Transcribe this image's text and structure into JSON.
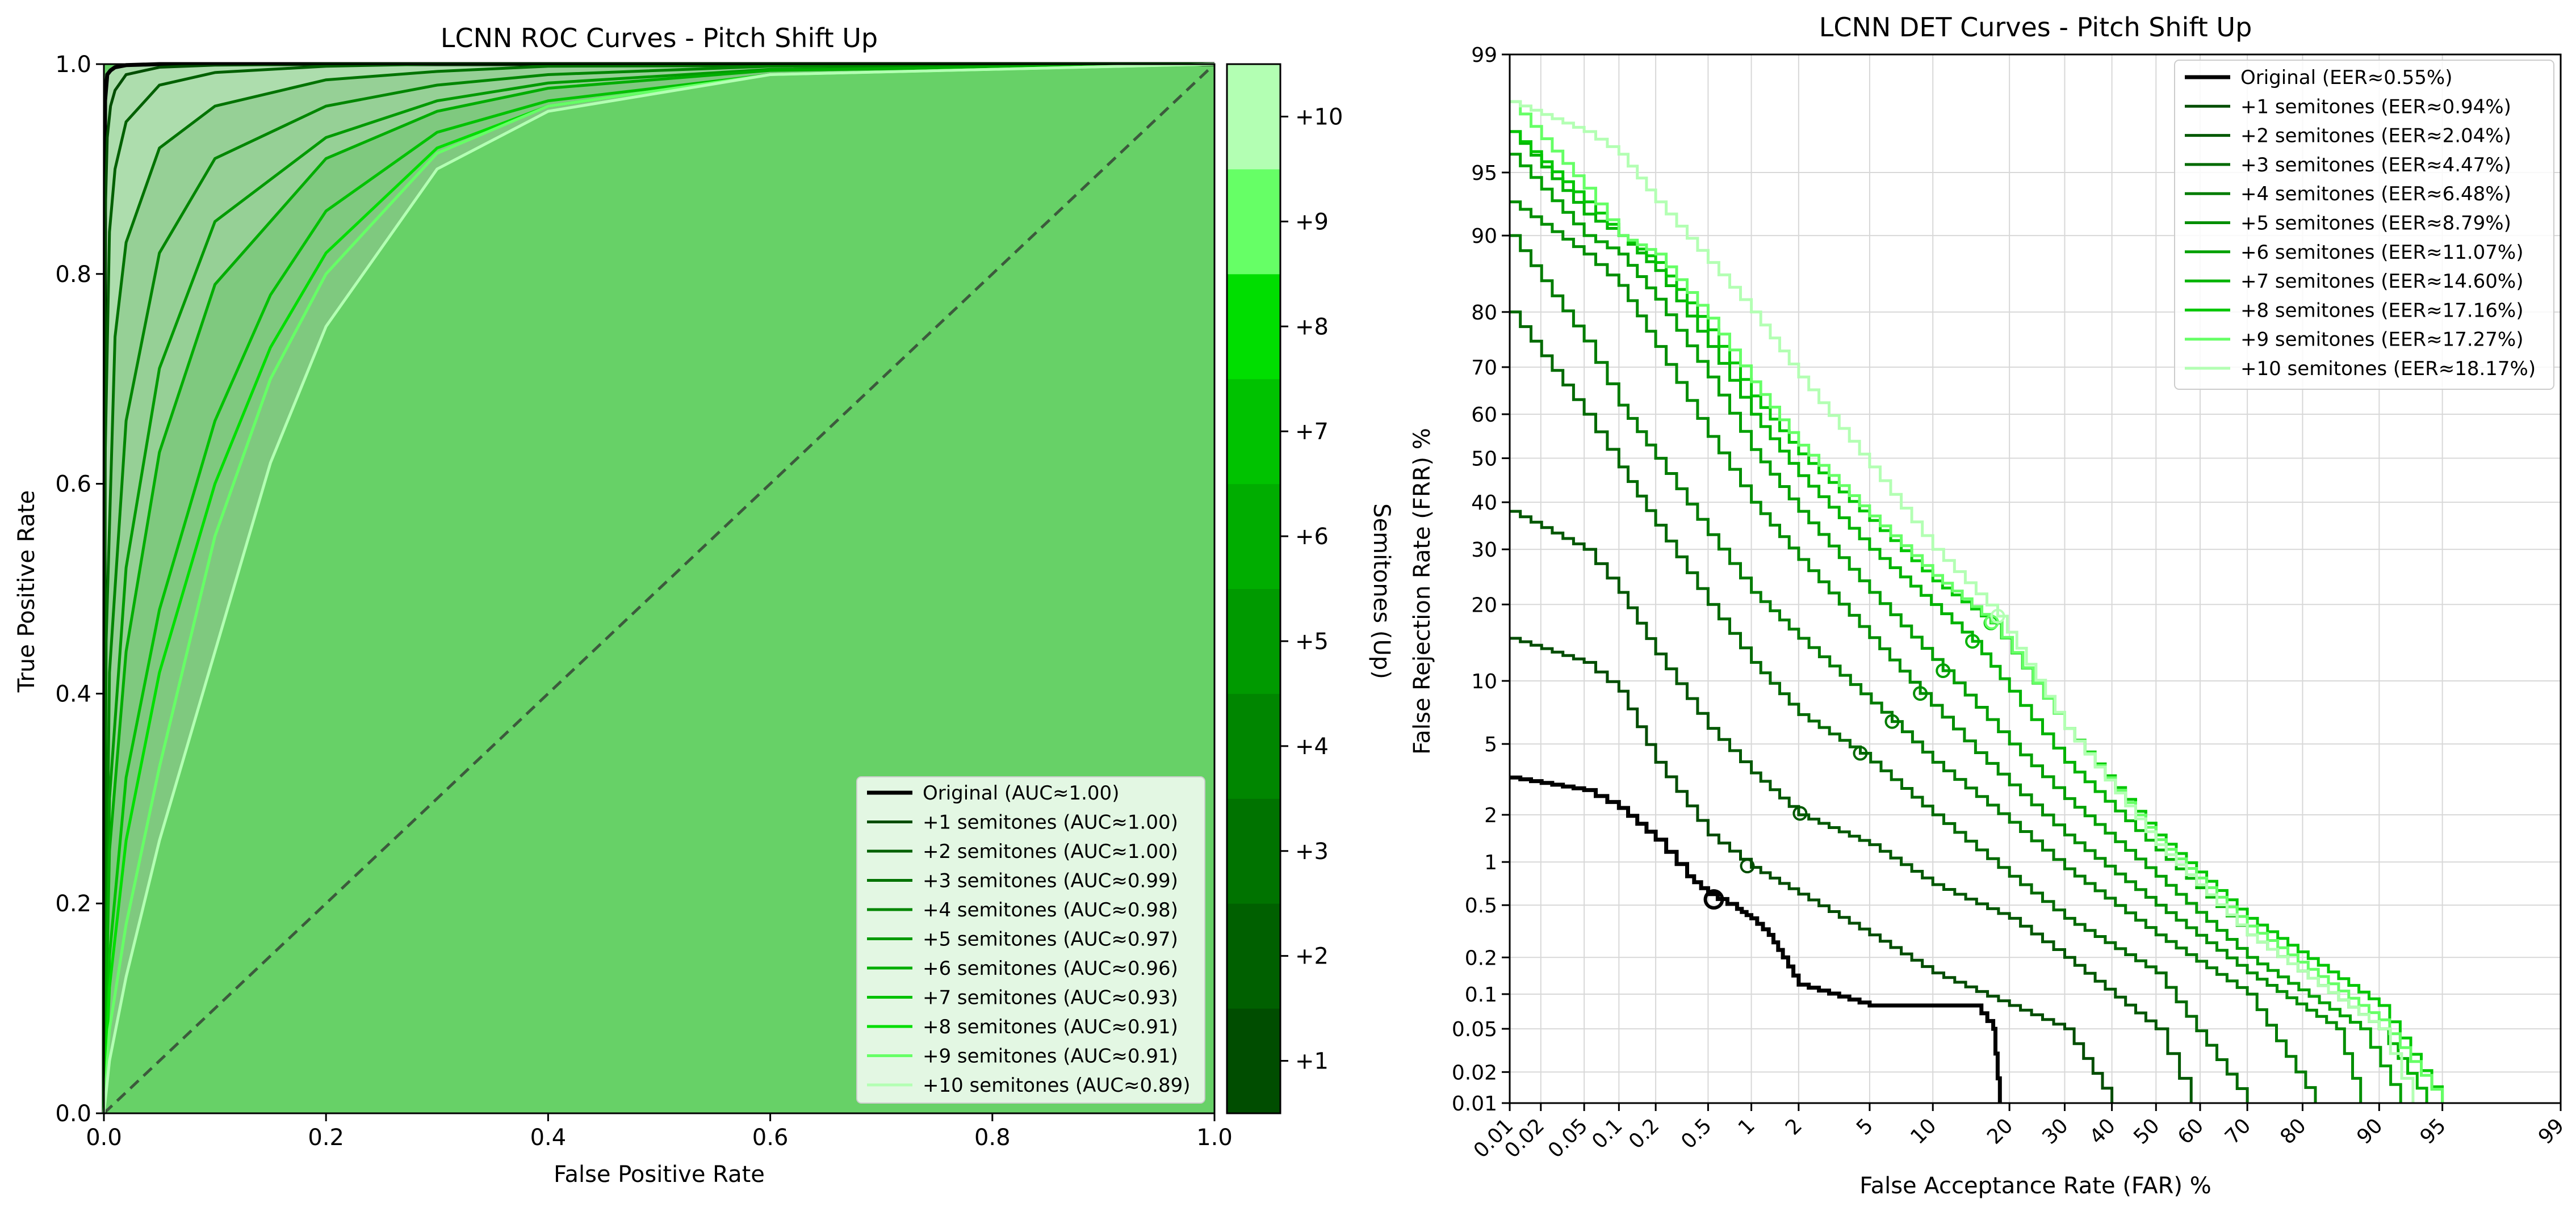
{
  "chart_data": [
    {
      "type": "line",
      "title": "LCNN ROC Curves - Pitch Shift Up",
      "xlabel": "False Positive Rate",
      "ylabel": "True Positive Rate",
      "xlim": [
        0,
        1
      ],
      "ylim": [
        0,
        1
      ],
      "xticks": [
        "0.0",
        "0.2",
        "0.4",
        "0.6",
        "0.8",
        "1.0"
      ],
      "yticks": [
        "0.0",
        "0.2",
        "0.4",
        "0.6",
        "0.8",
        "1.0"
      ],
      "diagonal": "dashed chance line from (0,0) to (1,1)",
      "legend_position": "lower right",
      "colorbar": {
        "label": "Semitones (Up)",
        "ticks": [
          "+1",
          "+2",
          "+3",
          "+4",
          "+5",
          "+6",
          "+7",
          "+8",
          "+9",
          "+10"
        ]
      },
      "series": [
        {
          "name": "Original (AUC≈1.00)",
          "color": "#000000",
          "x": [
            0,
            0.001,
            0.003,
            0.006,
            0.01,
            0.02,
            0.05,
            0.1,
            1
          ],
          "y": [
            0,
            0.965,
            0.99,
            0.994,
            0.997,
            0.999,
            1.0,
            1.0,
            1.0
          ]
        },
        {
          "name": "+1 semitones (AUC≈1.00)",
          "color": "#004d00",
          "x": [
            0,
            0.001,
            0.003,
            0.006,
            0.01,
            0.02,
            0.05,
            0.1,
            0.2,
            1
          ],
          "y": [
            0,
            0.85,
            0.93,
            0.96,
            0.975,
            0.99,
            0.997,
            0.999,
            1.0,
            1.0
          ]
        },
        {
          "name": "+2 semitones (AUC≈1.00)",
          "color": "#006000",
          "x": [
            0,
            0.001,
            0.005,
            0.01,
            0.02,
            0.05,
            0.1,
            0.2,
            0.3,
            1
          ],
          "y": [
            0,
            0.62,
            0.84,
            0.9,
            0.945,
            0.98,
            0.992,
            0.998,
            1.0,
            1.0
          ]
        },
        {
          "name": "+3 semitones (AUC≈0.99)",
          "color": "#007300",
          "x": [
            0,
            0.002,
            0.01,
            0.02,
            0.05,
            0.1,
            0.2,
            0.3,
            0.4,
            1
          ],
          "y": [
            0,
            0.45,
            0.74,
            0.83,
            0.92,
            0.96,
            0.985,
            0.993,
            0.998,
            1.0
          ]
        },
        {
          "name": "+4 semitones (AUC≈0.98)",
          "color": "#008600",
          "x": [
            0,
            0.005,
            0.02,
            0.05,
            0.1,
            0.2,
            0.3,
            0.4,
            0.6,
            1
          ],
          "y": [
            0,
            0.42,
            0.66,
            0.82,
            0.91,
            0.96,
            0.98,
            0.99,
            0.998,
            1.0
          ]
        },
        {
          "name": "+5 semitones (AUC≈0.97)",
          "color": "#009a00",
          "x": [
            0,
            0.005,
            0.02,
            0.05,
            0.1,
            0.2,
            0.3,
            0.4,
            0.6,
            1
          ],
          "y": [
            0,
            0.3,
            0.52,
            0.71,
            0.85,
            0.93,
            0.965,
            0.982,
            0.995,
            1.0
          ]
        },
        {
          "name": "+6 semitones (AUC≈0.96)",
          "color": "#00ad00",
          "x": [
            0,
            0.005,
            0.02,
            0.05,
            0.1,
            0.2,
            0.3,
            0.4,
            0.6,
            1
          ],
          "y": [
            0,
            0.25,
            0.44,
            0.63,
            0.79,
            0.91,
            0.955,
            0.977,
            0.994,
            1.0
          ]
        },
        {
          "name": "+7 semitones (AUC≈0.93)",
          "color": "#00c200",
          "x": [
            0,
            0.005,
            0.02,
            0.05,
            0.1,
            0.15,
            0.2,
            0.3,
            0.4,
            0.6,
            1
          ],
          "y": [
            0,
            0.15,
            0.32,
            0.48,
            0.66,
            0.78,
            0.86,
            0.935,
            0.965,
            0.99,
            1.0
          ]
        },
        {
          "name": "+8 semitones (AUC≈0.91)",
          "color": "#00de00",
          "x": [
            0,
            0.005,
            0.02,
            0.05,
            0.1,
            0.15,
            0.2,
            0.3,
            0.4,
            0.6,
            1
          ],
          "y": [
            0,
            0.12,
            0.26,
            0.42,
            0.6,
            0.73,
            0.82,
            0.92,
            0.96,
            0.99,
            1.0
          ]
        },
        {
          "name": "+9 semitones (AUC≈0.91)",
          "color": "#66ff66",
          "x": [
            0,
            0.005,
            0.02,
            0.05,
            0.1,
            0.15,
            0.2,
            0.3,
            0.4,
            0.6,
            1
          ],
          "y": [
            0,
            0.08,
            0.18,
            0.33,
            0.55,
            0.7,
            0.8,
            0.915,
            0.96,
            0.99,
            1.0
          ]
        },
        {
          "name": "+10 semitones (AUC≈0.89)",
          "color": "#b3ffb3",
          "x": [
            0,
            0.005,
            0.02,
            0.05,
            0.1,
            0.15,
            0.2,
            0.3,
            0.4,
            0.6,
            1
          ],
          "y": [
            0,
            0.05,
            0.13,
            0.26,
            0.44,
            0.62,
            0.75,
            0.9,
            0.955,
            0.99,
            1.0
          ]
        }
      ]
    },
    {
      "type": "line",
      "title": "LCNN DET Curves - Pitch Shift Up",
      "xlabel": "False Acceptance Rate (FAR) %",
      "ylabel": "False Rejection Rate (FRR) %",
      "scale": "normal deviate (probit) on both axes",
      "xlim": [
        0.01,
        99
      ],
      "ylim": [
        0.01,
        99
      ],
      "xticks": [
        "0.01",
        "0.02",
        "0.05",
        "0.1",
        "0.2",
        "0.5",
        "1",
        "2",
        "5",
        "10",
        "20",
        "30",
        "40",
        "50",
        "60",
        "70",
        "80",
        "90",
        "95",
        "99"
      ],
      "yticks": [
        "0.01",
        "0.02",
        "0.05",
        "0.1",
        "0.2",
        "0.5",
        "1",
        "2",
        "5",
        "10",
        "20",
        "30",
        "40",
        "50",
        "60",
        "70",
        "80",
        "90",
        "95",
        "99"
      ],
      "grid": true,
      "legend_position": "upper right",
      "eer_markers": "open circles at EER points",
      "series": [
        {
          "name": "Original (EER≈0.55%)",
          "color": "#000000",
          "eer": 0.55,
          "x": [
            0.01,
            0.05,
            0.1,
            0.2,
            0.35,
            0.5,
            0.8,
            1.0,
            1.3,
            1.6,
            2.0,
            5,
            10,
            15,
            17.5,
            18.5
          ],
          "y": [
            3.3,
            2.8,
            2.2,
            1.4,
            0.8,
            0.6,
            0.47,
            0.4,
            0.3,
            0.2,
            0.12,
            0.08,
            0.08,
            0.08,
            0.05,
            0.01
          ]
        },
        {
          "name": "+1 semitones (EER≈0.94%)",
          "color": "#004d00",
          "x": [
            0.01,
            0.05,
            0.1,
            0.2,
            0.5,
            1,
            2,
            5,
            10,
            20,
            30,
            40
          ],
          "y": [
            15,
            12,
            9,
            4,
            1.5,
            0.92,
            0.6,
            0.3,
            0.15,
            0.08,
            0.05,
            0.01
          ],
          "eer": 0.94
        },
        {
          "name": "+2 semitones (EER≈2.04%)",
          "color": "#005800",
          "x": [
            0.01,
            0.05,
            0.1,
            0.2,
            0.5,
            1,
            2,
            5,
            10,
            20,
            30,
            50,
            58
          ],
          "y": [
            38,
            30,
            22,
            13,
            6,
            3.5,
            2.0,
            1.3,
            0.7,
            0.4,
            0.2,
            0.05,
            0.01
          ],
          "eer": 2.04
        },
        {
          "name": "+3 semitones (EER≈4.47%)",
          "color": "#006a00",
          "x": [
            0.01,
            0.05,
            0.1,
            0.2,
            0.5,
            1,
            2,
            4.47,
            10,
            20,
            30,
            50,
            70
          ],
          "y": [
            80,
            60,
            48,
            35,
            20,
            12,
            7,
            4.47,
            2,
            0.8,
            0.4,
            0.15,
            0.01
          ],
          "eer": 4.47
        },
        {
          "name": "+4 semitones (EER≈6.48%)",
          "color": "#007c00",
          "x": [
            0.01,
            0.05,
            0.1,
            0.2,
            0.5,
            1,
            2,
            6.48,
            10,
            20,
            30,
            50,
            70,
            82
          ],
          "y": [
            90,
            75,
            62,
            50,
            33,
            22,
            15,
            6.48,
            4,
            1.8,
            0.9,
            0.3,
            0.1,
            0.01
          ],
          "eer": 6.48
        },
        {
          "name": "+5 semitones (EER≈8.79%)",
          "color": "#008e00",
          "x": [
            0.01,
            0.05,
            0.1,
            0.2,
            0.5,
            1,
            2,
            8.79,
            15,
            20,
            30,
            50,
            70,
            85,
            88
          ],
          "y": [
            93,
            88,
            84,
            74,
            55,
            40,
            28,
            8.79,
            4.5,
            3,
            1.5,
            0.5,
            0.15,
            0.05,
            0.01
          ],
          "eer": 8.79
        },
        {
          "name": "+6 semitones (EER≈11.07%)",
          "color": "#00a000",
          "x": [
            0.01,
            0.05,
            0.1,
            0.2,
            0.5,
            1,
            2,
            5,
            11.07,
            20,
            30,
            50,
            70,
            88,
            92
          ],
          "y": [
            96,
            90,
            88,
            82,
            68,
            52,
            38,
            22,
            11.07,
            5,
            2.5,
            0.8,
            0.2,
            0.05,
            0.01
          ],
          "eer": 11.07
        },
        {
          "name": "+7 semitones (EER≈14.60%)",
          "color": "#00b300",
          "x": [
            0.01,
            0.05,
            0.1,
            0.2,
            0.5,
            1,
            2,
            5,
            14.6,
            20,
            30,
            50,
            70,
            90,
            94
          ],
          "y": [
            97,
            92,
            90,
            86,
            74,
            60,
            46,
            30,
            14.6,
            9,
            4,
            1.2,
            0.3,
            0.05,
            0.01
          ],
          "eer": 14.6
        },
        {
          "name": "+8 semitones (EER≈17.16%)",
          "color": "#00c600",
          "x": [
            0.01,
            0.05,
            0.1,
            0.2,
            0.5,
            1,
            2,
            5,
            10,
            17.16,
            30,
            50,
            70,
            90,
            95
          ],
          "y": [
            97,
            93,
            90,
            87,
            77,
            64,
            51,
            36,
            24,
            17.16,
            6,
            1.5,
            0.4,
            0.08,
            0.01
          ],
          "eer": 17.16
        },
        {
          "name": "+9 semitones (EER≈17.27%)",
          "color": "#66ff66",
          "x": [
            0.01,
            0.05,
            0.1,
            0.2,
            0.5,
            1,
            2,
            5,
            10,
            17.27,
            30,
            50,
            70,
            90,
            95
          ],
          "y": [
            98,
            94,
            90,
            88,
            79,
            67,
            53,
            37,
            25,
            17.27,
            6,
            1.4,
            0.35,
            0.06,
            0.01
          ],
          "eer": 17.27
        },
        {
          "name": "+10 semitones (EER≈18.17%)",
          "color": "#b3ffb3",
          "x": [
            0.01,
            0.05,
            0.1,
            0.2,
            0.5,
            1,
            2,
            5,
            10,
            18.17,
            30,
            50,
            70,
            90,
            93
          ],
          "y": [
            98,
            97,
            96,
            93,
            87,
            80,
            68,
            48,
            30,
            18.17,
            6,
            1.3,
            0.3,
            0.05,
            0.01
          ],
          "eer": 18.17
        }
      ]
    }
  ]
}
